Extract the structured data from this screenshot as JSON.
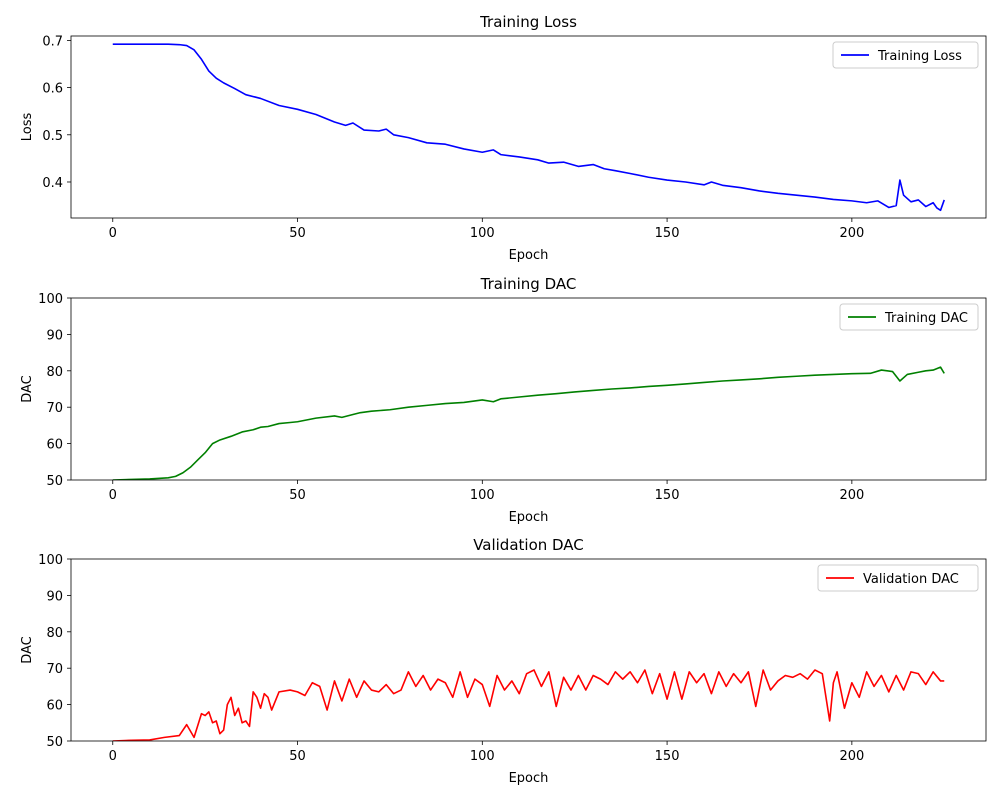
{
  "chart_data": [
    {
      "type": "line",
      "title": "Training Loss",
      "xlabel": "Epoch",
      "ylabel": "Loss",
      "xlim": [
        -11.3,
        236.3
      ],
      "ylim": [
        0.3237,
        0.7093
      ],
      "xticks": [
        0,
        50,
        100,
        150,
        200
      ],
      "yticks": [
        0.4,
        0.5,
        0.6,
        0.7
      ],
      "ytick_labels": [
        "0.4",
        "0.5",
        "0.6",
        "0.7"
      ],
      "legend": "top-right",
      "grid": false,
      "series": [
        {
          "name": "Training Loss",
          "color": "#0000ff",
          "x": [
            0,
            10,
            15,
            18,
            20,
            22,
            24,
            26,
            28,
            30,
            33,
            36,
            40,
            45,
            50,
            55,
            60,
            63,
            65,
            68,
            72,
            74,
            76,
            80,
            85,
            90,
            95,
            100,
            103,
            105,
            110,
            115,
            118,
            122,
            126,
            130,
            133,
            136,
            140,
            145,
            150,
            155,
            160,
            162,
            165,
            170,
            175,
            180,
            185,
            190,
            195,
            200,
            204,
            207,
            210,
            212,
            213,
            214,
            216,
            218,
            220,
            222,
            223,
            224,
            225
          ],
          "y": [
            0.692,
            0.692,
            0.692,
            0.691,
            0.689,
            0.68,
            0.66,
            0.635,
            0.62,
            0.61,
            0.598,
            0.585,
            0.577,
            0.562,
            0.554,
            0.543,
            0.527,
            0.52,
            0.525,
            0.51,
            0.508,
            0.512,
            0.5,
            0.494,
            0.483,
            0.48,
            0.47,
            0.463,
            0.468,
            0.458,
            0.453,
            0.447,
            0.44,
            0.442,
            0.433,
            0.437,
            0.428,
            0.424,
            0.418,
            0.41,
            0.404,
            0.4,
            0.394,
            0.4,
            0.393,
            0.388,
            0.381,
            0.376,
            0.372,
            0.368,
            0.363,
            0.36,
            0.356,
            0.36,
            0.346,
            0.35,
            0.404,
            0.372,
            0.358,
            0.362,
            0.348,
            0.356,
            0.345,
            0.34,
            0.362
          ]
        }
      ]
    },
    {
      "type": "line",
      "title": "Training DAC",
      "xlabel": "Epoch",
      "ylabel": "DAC",
      "xlim": [
        -11.3,
        236.3
      ],
      "ylim": [
        50,
        100
      ],
      "xticks": [
        0,
        50,
        100,
        150,
        200
      ],
      "yticks": [
        50,
        60,
        70,
        80,
        90,
        100
      ],
      "ytick_labels": [
        "50",
        "60",
        "70",
        "80",
        "90",
        "100"
      ],
      "legend": "top-right",
      "grid": false,
      "series": [
        {
          "name": "Training DAC",
          "color": "#008000",
          "x": [
            0,
            10,
            15,
            17,
            19,
            21,
            23,
            25,
            27,
            29,
            32,
            35,
            38,
            40,
            42,
            45,
            48,
            50,
            55,
            60,
            62,
            65,
            67,
            70,
            75,
            80,
            85,
            90,
            95,
            100,
            103,
            105,
            110,
            115,
            120,
            125,
            130,
            135,
            140,
            145,
            150,
            155,
            160,
            165,
            170,
            175,
            180,
            185,
            190,
            195,
            200,
            205,
            208,
            211,
            213,
            215,
            218,
            220,
            222,
            224,
            225
          ],
          "y": [
            50,
            50.3,
            50.6,
            51,
            52,
            53.5,
            55.5,
            57.5,
            60,
            61,
            62,
            63.2,
            63.8,
            64.5,
            64.7,
            65.5,
            65.8,
            66,
            67,
            67.6,
            67.2,
            68,
            68.5,
            68.9,
            69.3,
            70,
            70.5,
            71,
            71.3,
            72,
            71.5,
            72.3,
            72.8,
            73.3,
            73.7,
            74.2,
            74.6,
            75,
            75.3,
            75.7,
            76,
            76.4,
            76.8,
            77.2,
            77.5,
            77.8,
            78.2,
            78.5,
            78.8,
            79,
            79.2,
            79.3,
            80.2,
            79.8,
            77.2,
            79,
            79.6,
            80,
            80.2,
            81,
            79.3
          ]
        }
      ]
    },
    {
      "type": "line",
      "title": "Validation DAC",
      "xlabel": "Epoch",
      "ylabel": "DAC",
      "xlim": [
        -11.3,
        236.3
      ],
      "ylim": [
        50,
        100
      ],
      "xticks": [
        0,
        50,
        100,
        150,
        200
      ],
      "yticks": [
        50,
        60,
        70,
        80,
        90,
        100
      ],
      "ytick_labels": [
        "50",
        "60",
        "70",
        "80",
        "90",
        "100"
      ],
      "legend": "top-right",
      "grid": false,
      "series": [
        {
          "name": "Validation DAC",
          "color": "#ff0000",
          "x": [
            0,
            5,
            10,
            14,
            18,
            20,
            22,
            24,
            25,
            26,
            27,
            28,
            29,
            30,
            31,
            32,
            33,
            34,
            35,
            36,
            37,
            38,
            39,
            40,
            41,
            42,
            43,
            45,
            48,
            50,
            52,
            54,
            56,
            58,
            60,
            62,
            64,
            66,
            68,
            70,
            72,
            74,
            76,
            78,
            80,
            82,
            84,
            86,
            88,
            90,
            92,
            94,
            96,
            98,
            100,
            102,
            104,
            106,
            108,
            110,
            112,
            114,
            116,
            118,
            120,
            122,
            124,
            126,
            128,
            130,
            132,
            134,
            136,
            138,
            140,
            142,
            144,
            146,
            148,
            150,
            152,
            154,
            156,
            158,
            160,
            162,
            164,
            166,
            168,
            170,
            172,
            174,
            176,
            178,
            180,
            182,
            184,
            186,
            188,
            190,
            192,
            194,
            195,
            196,
            198,
            200,
            202,
            204,
            206,
            208,
            210,
            212,
            214,
            216,
            218,
            220,
            222,
            224,
            225
          ],
          "y": [
            50,
            50.2,
            50.3,
            51,
            51.5,
            54.5,
            51,
            57.5,
            57,
            58,
            55,
            55.5,
            52,
            53,
            60,
            62,
            57,
            59,
            55,
            55.5,
            54,
            63.5,
            62,
            59,
            63,
            62,
            58.5,
            63.5,
            64,
            63.5,
            62.5,
            66,
            65,
            58.5,
            66.5,
            61,
            67,
            62,
            66.5,
            64,
            63.5,
            65.5,
            63,
            64,
            69,
            65,
            68,
            64,
            67,
            66,
            62,
            69,
            62,
            67,
            65.5,
            59.5,
            68,
            64,
            66.5,
            63,
            68.5,
            69.5,
            65,
            69,
            59.5,
            67.5,
            64,
            68,
            64,
            68,
            67,
            65.5,
            69,
            67,
            69,
            66,
            69.5,
            63,
            68.5,
            61.5,
            69,
            61.5,
            69,
            66,
            68.5,
            63,
            69,
            65,
            68.5,
            66,
            69,
            59.5,
            69.5,
            64,
            66.5,
            68,
            67.5,
            68.5,
            67,
            69.5,
            68.5,
            55.5,
            66,
            69,
            59,
            66,
            62,
            69,
            65,
            68,
            63.5,
            68,
            64,
            69,
            68.5,
            65.5,
            69,
            66.5,
            66.5
          ]
        }
      ]
    }
  ]
}
